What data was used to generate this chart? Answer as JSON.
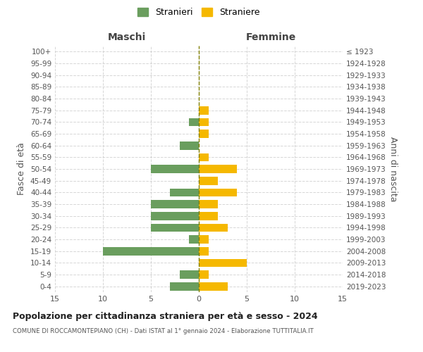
{
  "age_groups": [
    "0-4",
    "5-9",
    "10-14",
    "15-19",
    "20-24",
    "25-29",
    "30-34",
    "35-39",
    "40-44",
    "45-49",
    "50-54",
    "55-59",
    "60-64",
    "65-69",
    "70-74",
    "75-79",
    "80-84",
    "85-89",
    "90-94",
    "95-99",
    "100+"
  ],
  "birth_years": [
    "2019-2023",
    "2014-2018",
    "2009-2013",
    "2004-2008",
    "1999-2003",
    "1994-1998",
    "1989-1993",
    "1984-1988",
    "1979-1983",
    "1974-1978",
    "1969-1973",
    "1964-1968",
    "1959-1963",
    "1954-1958",
    "1949-1953",
    "1944-1948",
    "1939-1943",
    "1934-1938",
    "1929-1933",
    "1924-1928",
    "≤ 1923"
  ],
  "maschi": [
    3,
    2,
    0,
    10,
    1,
    5,
    5,
    5,
    3,
    0,
    5,
    0,
    2,
    0,
    1,
    0,
    0,
    0,
    0,
    0,
    0
  ],
  "femmine": [
    3,
    1,
    5,
    1,
    1,
    3,
    2,
    2,
    4,
    2,
    4,
    1,
    0,
    1,
    1,
    1,
    0,
    0,
    0,
    0,
    0
  ],
  "color_maschi": "#6a9e5e",
  "color_femmine": "#f5b800",
  "color_center_line": "#808000",
  "title": "Popolazione per cittadinanza straniera per età e sesso - 2024",
  "subtitle": "COMUNE DI ROCCAMONTEPIANO (CH) - Dati ISTAT al 1° gennaio 2024 - Elaborazione TUTTITALIA.IT",
  "ylabel_left": "Fasce di età",
  "ylabel_right": "Anni di nascita",
  "xlabel_left": "Maschi",
  "xlabel_right": "Femmine",
  "legend_maschi": "Stranieri",
  "legend_femmine": "Straniere",
  "xlim": 15,
  "background_color": "#ffffff",
  "grid_color": "#cccccc"
}
